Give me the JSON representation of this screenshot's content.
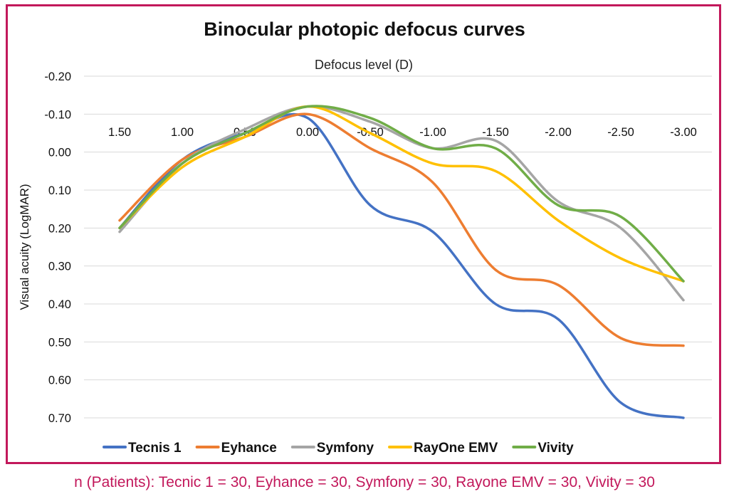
{
  "footnote": "n (Patients): Tecnic 1 = 30, Eyhance = 30, Symfony = 30, Rayone EMV = 30, Vivity = 30",
  "colors": {
    "frame": "#c2185b",
    "grid": "#d9d9d9",
    "Tecnis 1": "#4472c4",
    "Eyhance": "#ed7d31",
    "Symfony": "#a5a5a5",
    "RayOne EMV": "#ffc000",
    "Vivity": "#70ad47"
  },
  "chart_data": {
    "type": "line",
    "title": "Binocular photopic defocus curves",
    "xlabel": "Defocus level (D)",
    "ylabel": "Visual acuity (LogMAR)",
    "x": [
      1.5,
      1.0,
      0.5,
      0.0,
      -0.5,
      -1.0,
      -1.5,
      -2.0,
      -2.5,
      -3.0
    ],
    "x_tick_labels": [
      "1.50",
      "1.00",
      "0.50",
      "0.00",
      "-0.50",
      "-1.00",
      "-1.50",
      "-2.00",
      "-2.50",
      "-3.00"
    ],
    "y_tick_labels": [
      "-0.20",
      "-0.10",
      "0.00",
      "0.10",
      "0.20",
      "0.30",
      "0.40",
      "0.50",
      "0.60",
      "0.70"
    ],
    "y_ticks": [
      -0.2,
      -0.1,
      0.0,
      0.1,
      0.2,
      0.3,
      0.4,
      0.5,
      0.6,
      0.7
    ],
    "ylim": [
      -0.2,
      0.7
    ],
    "y_inverted": true,
    "x_axis_position": "top",
    "grid": true,
    "legend_position": "bottom",
    "smooth": true,
    "series": [
      {
        "name": "Tecnis 1",
        "values": [
          0.2,
          0.02,
          -0.05,
          -0.09,
          0.14,
          0.21,
          0.4,
          0.44,
          0.66,
          0.7
        ]
      },
      {
        "name": "Eyhance",
        "values": [
          0.18,
          0.02,
          -0.04,
          -0.1,
          -0.01,
          0.08,
          0.31,
          0.35,
          0.49,
          0.51
        ]
      },
      {
        "name": "Symfony",
        "values": [
          0.21,
          0.03,
          -0.06,
          -0.12,
          -0.08,
          -0.01,
          -0.03,
          0.13,
          0.2,
          0.39
        ]
      },
      {
        "name": "RayOne EMV",
        "values": [
          0.2,
          0.04,
          -0.04,
          -0.12,
          -0.05,
          0.03,
          0.05,
          0.18,
          0.28,
          0.34
        ]
      },
      {
        "name": "Vivity",
        "values": [
          0.2,
          0.03,
          -0.05,
          -0.12,
          -0.09,
          -0.01,
          -0.01,
          0.14,
          0.17,
          0.34
        ]
      }
    ]
  }
}
